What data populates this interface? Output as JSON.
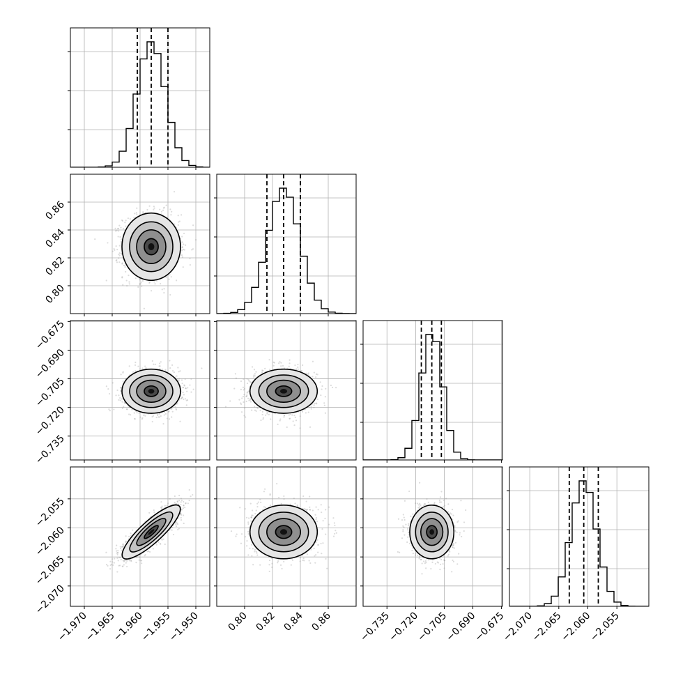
{
  "chart_data": {
    "type": "corner",
    "title": "",
    "grid": true,
    "quantiles": [
      0.16,
      0.5,
      0.84
    ],
    "parameters": [
      {
        "mean": -1.958,
        "std": 0.0025,
        "range": [
          -1.9725,
          -1.9475
        ],
        "ticks": [
          -1.97,
          -1.965,
          -1.96,
          -1.955,
          -1.95
        ],
        "tick_labels": [
          "−1.970",
          "−1.965",
          "−1.960",
          "−1.955",
          "−1.950"
        ],
        "quantile_values": [
          -1.9605,
          -1.958,
          -1.955
        ]
      },
      {
        "mean": 0.828,
        "std": 0.0115,
        "range": [
          0.78,
          0.88
        ],
        "ticks": [
          0.8,
          0.82,
          0.84,
          0.86
        ],
        "tick_labels": [
          "0.80",
          "0.82",
          "0.84",
          "0.86"
        ],
        "quantile_values": [
          0.816,
          0.828,
          0.84
        ]
      },
      {
        "mean": -0.7115,
        "std": 0.0055,
        "range": [
          -0.7475,
          -0.6745
        ],
        "ticks": [
          -0.735,
          -0.72,
          -0.705,
          -0.69,
          -0.675
        ],
        "tick_labels": [
          "−0.735",
          "−0.720",
          "−0.705",
          "−0.690",
          "−0.675"
        ],
        "quantile_values": [
          -0.717,
          -0.7115,
          -0.7065
        ]
      },
      {
        "mean": -2.0607,
        "std": 0.0022,
        "range": [
          -2.0735,
          -2.0495
        ],
        "ticks": [
          -2.07,
          -2.065,
          -2.06,
          -2.055
        ],
        "tick_labels": [
          "−2.070",
          "−2.065",
          "−2.060",
          "−2.055"
        ],
        "quantile_values": [
          -2.0632,
          -2.0607,
          -2.0582
        ]
      }
    ],
    "correlations": [
      [
        1.0,
        0.0,
        0.0,
        0.85
      ],
      [
        0.0,
        1.0,
        0.0,
        0.0
      ],
      [
        0.0,
        0.0,
        1.0,
        0.0
      ],
      [
        0.85,
        0.0,
        0.0,
        1.0
      ]
    ],
    "histogram_bins": 20,
    "samples_per_panel": 1400
  }
}
